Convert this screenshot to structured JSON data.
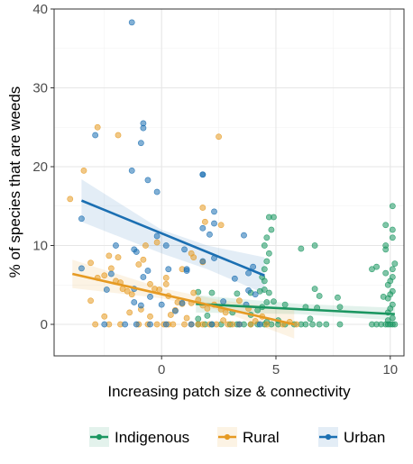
{
  "chart_data": {
    "type": "scatter",
    "title": "",
    "xlabel": "Increasing patch size & connectivity",
    "ylabel": "% of species that are weeds",
    "xlim": [
      -4.7,
      10.6
    ],
    "ylim": [
      -4,
      40
    ],
    "x_ticks": [
      0,
      5,
      10
    ],
    "x_tick_labels": [
      "0",
      "5",
      "10"
    ],
    "y_ticks": [
      0,
      10,
      20,
      30,
      40
    ],
    "y_tick_labels": [
      "0",
      "10",
      "20",
      "30",
      "40"
    ],
    "grid": true,
    "legend_position": "bottom",
    "series": [
      {
        "name": "Indigenous",
        "color": "#1a9660",
        "points": [
          [
            1.6,
            0
          ],
          [
            1.9,
            0
          ],
          [
            2.2,
            0
          ],
          [
            2.6,
            0
          ],
          [
            3.0,
            0
          ],
          [
            3.3,
            0
          ],
          [
            3.6,
            0
          ],
          [
            3.9,
            0
          ],
          [
            4.2,
            0
          ],
          [
            4.5,
            0
          ],
          [
            4.8,
            0
          ],
          [
            5.1,
            0
          ],
          [
            5.4,
            0
          ],
          [
            5.8,
            0
          ],
          [
            6.1,
            0
          ],
          [
            6.3,
            0
          ],
          [
            6.6,
            0
          ],
          [
            6.9,
            0
          ],
          [
            7.2,
            0
          ],
          [
            7.8,
            0
          ],
          [
            9.2,
            0
          ],
          [
            9.4,
            0
          ],
          [
            9.6,
            0
          ],
          [
            9.8,
            0
          ],
          [
            9.9,
            0
          ],
          [
            10.0,
            0
          ],
          [
            10.1,
            0
          ],
          [
            10.2,
            0
          ],
          [
            4.6,
            0.3
          ],
          [
            5.1,
            0.5
          ],
          [
            6.5,
            0.7
          ],
          [
            9.9,
            0.5
          ],
          [
            10.1,
            0.8
          ],
          [
            1.6,
            0.7
          ],
          [
            2.0,
            1.1
          ],
          [
            3.1,
            1.5
          ],
          [
            3.9,
            1.2
          ],
          [
            4.2,
            1.8
          ],
          [
            4.4,
            2.2
          ],
          [
            4.6,
            2.8
          ],
          [
            4.9,
            2.9
          ],
          [
            5.4,
            2.5
          ],
          [
            6.3,
            2.2
          ],
          [
            6.8,
            2.1
          ],
          [
            7.8,
            2.2
          ],
          [
            9.9,
            1.5
          ],
          [
            10.0,
            2.0
          ],
          [
            10.1,
            2.5
          ],
          [
            1.6,
            4.1
          ],
          [
            2.2,
            4.0
          ],
          [
            3.3,
            3.9
          ],
          [
            3.9,
            4.0
          ],
          [
            4.3,
            4.2
          ],
          [
            4.5,
            4.4
          ],
          [
            4.7,
            4.0
          ],
          [
            6.7,
            4.5
          ],
          [
            6.9,
            3.6
          ],
          [
            7.7,
            3.4
          ],
          [
            9.9,
            3.3
          ],
          [
            10.0,
            3.8
          ],
          [
            10.1,
            4.2
          ],
          [
            9.7,
            3.5
          ],
          [
            9.9,
            5.0
          ],
          [
            10.0,
            5.5
          ],
          [
            10.1,
            6.0
          ],
          [
            9.8,
            6.5
          ],
          [
            10.1,
            7.0
          ],
          [
            10.2,
            7.7
          ],
          [
            4.4,
            6.0
          ],
          [
            4.5,
            7.0
          ],
          [
            4.6,
            8.0
          ],
          [
            4.7,
            9.0
          ],
          [
            4.5,
            10.0
          ],
          [
            4.6,
            11.0
          ],
          [
            4.8,
            12.0
          ],
          [
            4.7,
            13.6
          ],
          [
            4.9,
            13.6
          ],
          [
            4.5,
            5.5
          ],
          [
            6.1,
            9.6
          ],
          [
            6.7,
            10.0
          ],
          [
            9.2,
            7.0
          ],
          [
            9.4,
            7.3
          ],
          [
            9.8,
            9.5
          ],
          [
            9.8,
            10.0
          ],
          [
            10.1,
            11.0
          ],
          [
            10.1,
            12.0
          ],
          [
            9.8,
            12.6
          ],
          [
            10.1,
            15.0
          ]
        ]
      },
      {
        "name": "Rural",
        "color": "#e69a22",
        "points": [
          [
            -3.4,
            19.5
          ],
          [
            -2.8,
            25.0
          ],
          [
            -1.9,
            24.0
          ],
          [
            2.5,
            23.8
          ],
          [
            1.8,
            14.8
          ],
          [
            -4.0,
            15.9
          ],
          [
            -3.1,
            7.8
          ],
          [
            -2.8,
            5.9
          ],
          [
            -2.5,
            6.2
          ],
          [
            -2.3,
            8.7
          ],
          [
            -2.2,
            7.1
          ],
          [
            -2.0,
            5.5
          ],
          [
            -1.8,
            5.3
          ],
          [
            -1.7,
            4.5
          ],
          [
            -1.5,
            4.2
          ],
          [
            -1.3,
            3.8
          ],
          [
            -1.0,
            7.6
          ],
          [
            -0.8,
            8.2
          ],
          [
            -0.5,
            5.1
          ],
          [
            -0.3,
            4.5
          ],
          [
            -0.1,
            4.4
          ],
          [
            0.2,
            5.1
          ],
          [
            0.3,
            3.6
          ],
          [
            0.7,
            2.8
          ],
          [
            0.9,
            2.6
          ],
          [
            1.3,
            2.7
          ],
          [
            1.4,
            4.0
          ],
          [
            1.6,
            3.1
          ],
          [
            1.8,
            2.4
          ],
          [
            2.0,
            2.0
          ],
          [
            2.3,
            2.5
          ],
          [
            2.6,
            1.9
          ],
          [
            2.8,
            1.5
          ],
          [
            3.4,
            3.0
          ],
          [
            3.8,
            2.0
          ],
          [
            4.4,
            1.0
          ],
          [
            -0.7,
            10.0
          ],
          [
            -0.2,
            10.4
          ],
          [
            0.9,
            7.0
          ],
          [
            1.3,
            9.0
          ],
          [
            1.8,
            7.9
          ],
          [
            0.2,
            5.9
          ],
          [
            1.9,
            13.0
          ],
          [
            2.6,
            12.6
          ],
          [
            1.4,
            8.5
          ],
          [
            -1.9,
            8.5
          ],
          [
            -2.9,
            0
          ],
          [
            -2.3,
            0
          ],
          [
            -1.8,
            0
          ],
          [
            -1.0,
            0
          ],
          [
            -0.6,
            0
          ],
          [
            -0.2,
            0
          ],
          [
            0.1,
            0
          ],
          [
            0.3,
            0
          ],
          [
            0.5,
            0
          ],
          [
            1.0,
            0
          ],
          [
            1.3,
            0
          ],
          [
            1.6,
            0
          ],
          [
            1.8,
            0
          ],
          [
            2.1,
            0
          ],
          [
            2.4,
            0
          ],
          [
            2.9,
            0
          ],
          [
            3.1,
            0
          ],
          [
            3.4,
            0
          ],
          [
            3.9,
            0
          ],
          [
            4.6,
            0
          ],
          [
            5.3,
            0
          ],
          [
            5.9,
            0
          ],
          [
            -3.1,
            3.0
          ],
          [
            -2.5,
            1.0
          ],
          [
            -1.4,
            1.5
          ],
          [
            -0.5,
            1.0
          ],
          [
            0.4,
            1.2
          ],
          [
            1.1,
            0.8
          ],
          [
            2.7,
            0.5
          ],
          [
            4.1,
            0.4
          ],
          [
            5.6,
            0.3
          ],
          [
            -0.9,
            1.9
          ],
          [
            0.6,
            1.8
          ]
        ]
      },
      {
        "name": "Urban",
        "color": "#1b6fb2",
        "points": [
          [
            -1.3,
            38.3
          ],
          [
            -0.8,
            25.5
          ],
          [
            -0.8,
            24.9
          ],
          [
            -0.9,
            23.0
          ],
          [
            -1.3,
            19.5
          ],
          [
            -0.6,
            18.3
          ],
          [
            -2.9,
            24.0
          ],
          [
            -0.2,
            16.8
          ],
          [
            1.8,
            19.0
          ],
          [
            1.8,
            19.0
          ],
          [
            2.3,
            14.3
          ],
          [
            2.3,
            12.8
          ],
          [
            3.6,
            11.3
          ],
          [
            -3.5,
            13.4
          ],
          [
            -1.2,
            9.5
          ],
          [
            -1.1,
            9.2
          ],
          [
            -2.0,
            10.0
          ],
          [
            -0.2,
            11.2
          ],
          [
            0.2,
            10.0
          ],
          [
            1.0,
            9.5
          ],
          [
            1.8,
            12.2
          ],
          [
            2.1,
            11.4
          ],
          [
            -0.6,
            6.8
          ],
          [
            -0.8,
            6.0
          ],
          [
            0.3,
            7.0
          ],
          [
            1.1,
            7.0
          ],
          [
            1.8,
            8.0
          ],
          [
            2.3,
            8.4
          ],
          [
            -1.2,
            4.5
          ],
          [
            -0.5,
            3.5
          ],
          [
            0.0,
            2.5
          ],
          [
            0.9,
            2.7
          ],
          [
            1.1,
            6.8
          ],
          [
            3.2,
            5.8
          ],
          [
            3.8,
            6.5
          ],
          [
            3.8,
            4.3
          ],
          [
            4.0,
            7.3
          ],
          [
            4.1,
            3.8
          ],
          [
            -3.5,
            7.1
          ],
          [
            -2.2,
            6.4
          ],
          [
            -2.4,
            4.4
          ],
          [
            -1.2,
            2.8
          ],
          [
            -0.9,
            2.4
          ],
          [
            0.6,
            1.7
          ],
          [
            2.7,
            2.9
          ],
          [
            3.7,
            2.5
          ],
          [
            -2.5,
            0
          ],
          [
            -1.6,
            0
          ],
          [
            -1.1,
            0
          ],
          [
            -0.5,
            0
          ],
          [
            0.2,
            0
          ],
          [
            1.3,
            0
          ],
          [
            2.2,
            0
          ],
          [
            3.4,
            0
          ],
          [
            4.3,
            0
          ]
        ]
      }
    ],
    "trend_lines": [
      {
        "name": "Indigenous",
        "x": [
          1.5,
          10.2
        ],
        "y": [
          2.6,
          1.3
        ],
        "ci": [
          [
            1.5,
            3.7,
            1.5
          ],
          [
            6.0,
            2.6,
            1.3
          ],
          [
            10.2,
            2.1,
            0.5
          ]
        ]
      },
      {
        "name": "Rural",
        "x": [
          -3.9,
          5.8
        ],
        "y": [
          6.4,
          0.0
        ],
        "ci": [
          [
            -3.9,
            8.2,
            4.6
          ],
          [
            0.0,
            4.6,
            3.3
          ],
          [
            2.5,
            3.1,
            1.8
          ],
          [
            5.8,
            1.8,
            -1.8
          ]
        ]
      },
      {
        "name": "Urban",
        "x": [
          -3.5,
          4.5
        ],
        "y": [
          15.7,
          6.2
        ],
        "ci": [
          [
            -3.5,
            18.4,
            13.0
          ],
          [
            0.0,
            12.0,
            9.0
          ],
          [
            2.0,
            10.0,
            7.0
          ],
          [
            4.5,
            8.5,
            3.9
          ]
        ]
      }
    ]
  }
}
